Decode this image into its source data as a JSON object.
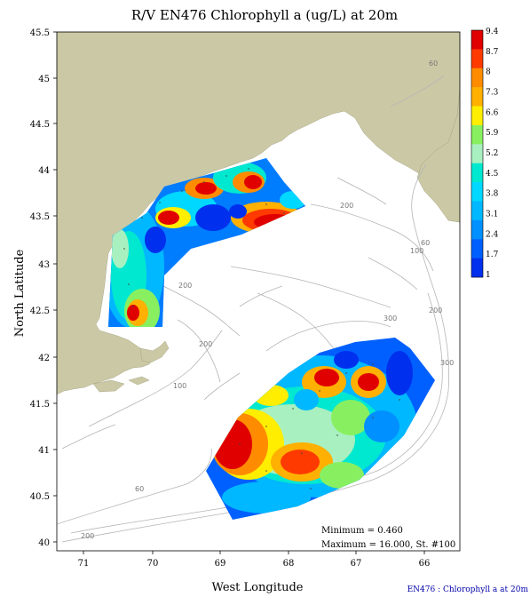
{
  "title": "R/V EN476 Chlorophyll a (ug/L) at 20m",
  "xlabel": "West Longitude",
  "ylabel": "North Latitude",
  "x_ticks": [
    "71",
    "70",
    "69",
    "68",
    "67",
    "66"
  ],
  "y_ticks": [
    "45.5",
    "45",
    "44.5",
    "44",
    "43.5",
    "43",
    "42.5",
    "42",
    "41.5",
    "41",
    "40.5",
    "40"
  ],
  "colorbar": {
    "labels": [
      "9.4",
      "8.7",
      "8",
      "7.3",
      "6.6",
      "5.9",
      "5.2",
      "4.5",
      "3.8",
      "3.1",
      "2.4",
      "1.7",
      "1"
    ],
    "colors": [
      "#e00000",
      "#ff3a00",
      "#ff8c00",
      "#ffb000",
      "#ffee00",
      "#88f060",
      "#a8f0c0",
      "#00e8d0",
      "#00d8ff",
      "#00b8ff",
      "#0090ff",
      "#0060ff",
      "#0030ee"
    ]
  },
  "stats": {
    "minimum": "Minimum = 0.460",
    "maximum": "Maximum = 16.000, St. #100"
  },
  "caption": "EN476 : Chlorophyll a at 20m",
  "isobath_labels": [
    "60",
    "60",
    "100",
    "200",
    "200",
    "200",
    "300",
    "300",
    "100",
    "200",
    "60",
    "200"
  ],
  "land_color": "#cbc9a5"
}
